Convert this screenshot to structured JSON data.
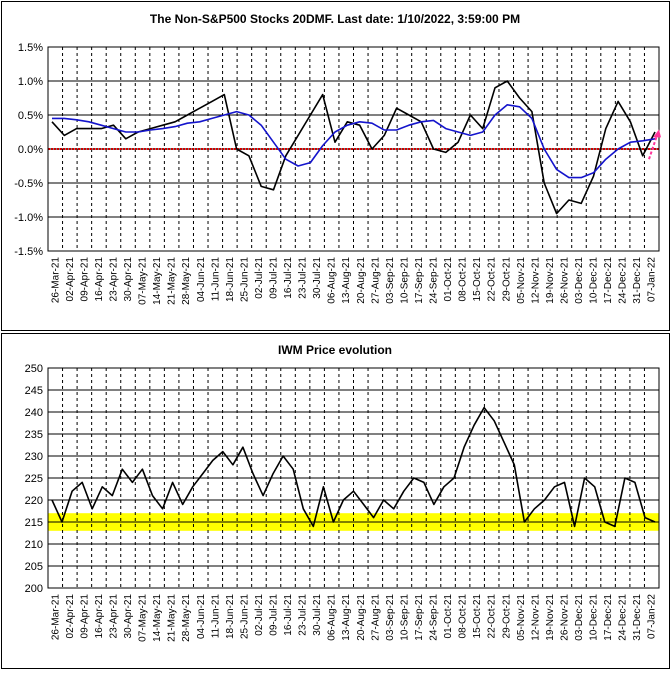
{
  "chart_data": [
    {
      "type": "line",
      "title": "The Non-S&P500 Stocks 20DMF. Last date: 1/10/2022, 3:59:00 PM",
      "ylim": [
        -1.5,
        1.5
      ],
      "y_ticks": [
        "1.5%",
        "1.0%",
        "0.5%",
        "0.0%",
        "-0.5%",
        "-1.0%",
        "-1.5%"
      ],
      "x_labels": [
        "26-Mar-21",
        "02-Apr-21",
        "09-Apr-21",
        "16-Apr-21",
        "23-Apr-21",
        "30-Apr-21",
        "07-May-21",
        "14-May-21",
        "21-May-21",
        "28-May-21",
        "04-Jun-21",
        "11-Jun-21",
        "18-Jun-21",
        "25-Jun-21",
        "02-Jul-21",
        "09-Jul-21",
        "16-Jul-21",
        "23-Jul-21",
        "30-Jul-21",
        "06-Aug-21",
        "13-Aug-21",
        "20-Aug-21",
        "27-Aug-21",
        "03-Sep-21",
        "10-Sep-21",
        "17-Sep-21",
        "24-Sep-21",
        "01-Oct-21",
        "08-Oct-21",
        "15-Oct-21",
        "22-Oct-21",
        "29-Oct-21",
        "05-Nov-21",
        "12-Nov-21",
        "19-Nov-21",
        "26-Nov-21",
        "03-Dec-21",
        "10-Dec-21",
        "17-Dec-21",
        "24-Dec-21",
        "31-Dec-21",
        "07-Jan-22"
      ],
      "grid": true,
      "zero_line_color": "#cc0000",
      "series": [
        {
          "color": "#000000",
          "values": [
            0.4,
            0.2,
            0.3,
            0.3,
            0.3,
            0.35,
            0.15,
            0.25,
            0.3,
            0.35,
            0.4,
            0.5,
            0.6,
            0.7,
            0.8,
            0.0,
            -0.1,
            -0.55,
            -0.6,
            -0.1,
            0.2,
            0.5,
            0.8,
            0.1,
            0.4,
            0.35,
            0.0,
            0.2,
            0.6,
            0.5,
            0.4,
            0.0,
            -0.05,
            0.1,
            0.5,
            0.3,
            0.9,
            1.0,
            0.75,
            0.55,
            -0.5,
            -0.95,
            -0.75,
            -0.8,
            -0.4,
            0.3,
            0.7,
            0.4,
            -0.1,
            0.25
          ]
        },
        {
          "color": "#1414cc",
          "values": [
            0.45,
            0.45,
            0.43,
            0.4,
            0.35,
            0.3,
            0.25,
            0.25,
            0.28,
            0.3,
            0.33,
            0.38,
            0.4,
            0.45,
            0.5,
            0.55,
            0.5,
            0.35,
            0.1,
            -0.15,
            -0.25,
            -0.2,
            0.05,
            0.25,
            0.35,
            0.4,
            0.38,
            0.28,
            0.28,
            0.35,
            0.4,
            0.42,
            0.3,
            0.25,
            0.2,
            0.25,
            0.5,
            0.65,
            0.62,
            0.45,
            0.0,
            -0.3,
            -0.42,
            -0.42,
            -0.35,
            -0.15,
            0.0,
            0.1,
            0.12,
            0.15
          ]
        }
      ]
    },
    {
      "type": "line",
      "title": "IWM Price evolution",
      "ylim": [
        200,
        250
      ],
      "y_ticks": [
        "250",
        "245",
        "240",
        "235",
        "230",
        "225",
        "220",
        "215",
        "210",
        "205",
        "200"
      ],
      "x_labels": [
        "26-Mar-21",
        "02-Apr-21",
        "09-Apr-21",
        "16-Apr-21",
        "23-Apr-21",
        "30-Apr-21",
        "07-May-21",
        "14-May-21",
        "21-May-21",
        "28-May-21",
        "04-Jun-21",
        "11-Jun-21",
        "18-Jun-21",
        "25-Jun-21",
        "02-Jul-21",
        "09-Jul-21",
        "16-Jul-21",
        "23-Jul-21",
        "30-Jul-21",
        "06-Aug-21",
        "13-Aug-21",
        "20-Aug-21",
        "27-Aug-21",
        "03-Sep-21",
        "10-Sep-21",
        "17-Sep-21",
        "24-Sep-21",
        "01-Oct-21",
        "08-Oct-21",
        "15-Oct-21",
        "22-Oct-21",
        "29-Oct-21",
        "05-Nov-21",
        "12-Nov-21",
        "19-Nov-21",
        "26-Nov-21",
        "03-Dec-21",
        "10-Dec-21",
        "17-Dec-21",
        "24-Dec-21",
        "31-Dec-21",
        "07-Jan-22"
      ],
      "grid": true,
      "highlight_band": {
        "from": 213,
        "to": 217,
        "color": "#ffff00"
      },
      "series": [
        {
          "color": "#000000",
          "values": [
            220,
            215,
            222,
            224,
            218,
            223,
            221,
            227,
            224,
            227,
            221,
            218,
            224,
            219,
            223,
            226,
            229,
            231,
            228,
            232,
            226,
            221,
            226,
            230,
            227,
            218,
            214,
            223,
            215,
            220,
            222,
            219,
            216,
            220,
            218,
            222,
            225,
            224,
            219,
            223,
            225,
            232,
            237,
            241,
            238,
            233,
            228,
            215,
            218,
            220,
            223,
            224,
            214,
            225,
            223,
            215,
            214,
            225,
            224,
            216,
            215
          ]
        }
      ]
    }
  ]
}
